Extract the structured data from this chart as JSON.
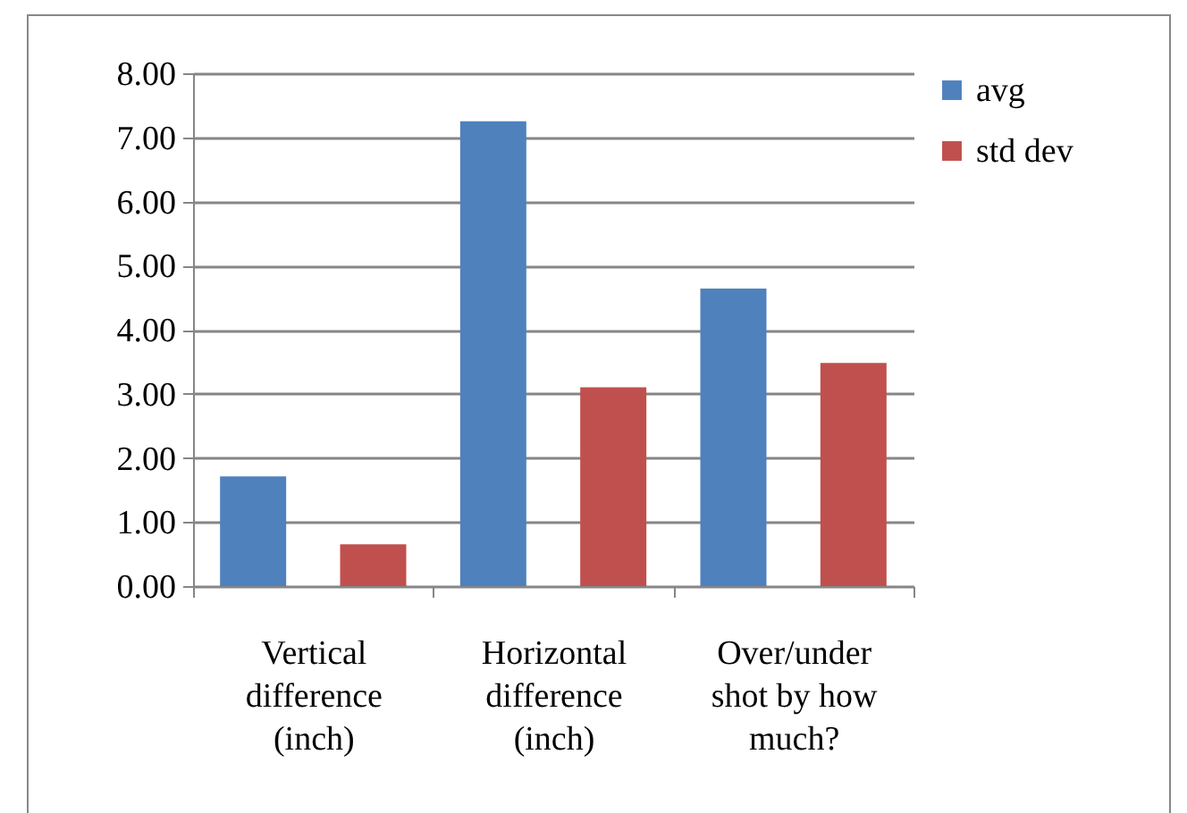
{
  "chart_data": {
    "type": "bar",
    "categories": [
      "Vertical difference (inch)",
      "Horizontal difference (inch)",
      "Over/under shot by how much?"
    ],
    "series": [
      {
        "name": "avg",
        "color": "#4f81bd",
        "values": [
          1.71,
          7.25,
          4.64
        ]
      },
      {
        "name": "std dev",
        "color": "#c0504d",
        "values": [
          0.65,
          3.1,
          3.48
        ]
      }
    ],
    "ylim": [
      0,
      8
    ],
    "yticks": [
      {
        "value": 0,
        "label": "0.00"
      },
      {
        "value": 1,
        "label": "1.00"
      },
      {
        "value": 2,
        "label": "2.00"
      },
      {
        "value": 3,
        "label": "3.00"
      },
      {
        "value": 4,
        "label": "4.00"
      },
      {
        "value": 5,
        "label": "5.00"
      },
      {
        "value": 6,
        "label": "6.00"
      },
      {
        "value": 7,
        "label": "7.00"
      },
      {
        "value": 8,
        "label": "8.00"
      }
    ],
    "grid": "y",
    "legend": "right"
  }
}
